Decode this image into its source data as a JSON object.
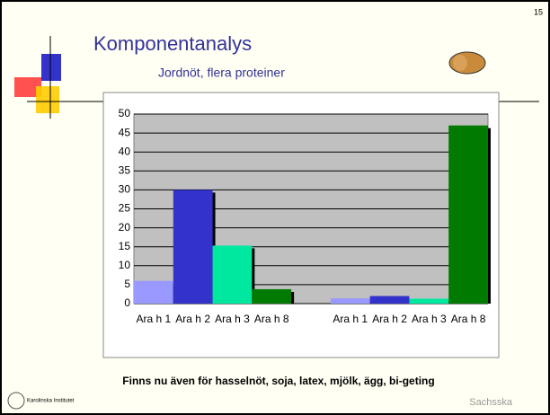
{
  "slide_number": "15",
  "chart_data": {
    "type": "bar",
    "title": "Komponentanalys",
    "subtitle": "Jordnöt, flera proteiner",
    "categories": [
      "Ara h 1",
      "Ara h 2",
      "Ara h 3",
      "Ara h 8",
      "Ara h 1",
      "Ara h 2",
      "Ara h 3",
      "Ara h 8"
    ],
    "values": [
      6,
      30,
      15.3,
      3.8,
      1.4,
      2,
      1.3,
      47
    ],
    "colors": [
      "#9999ff",
      "#3333cc",
      "#00e8a0",
      "#007a00",
      "#9999ff",
      "#3333cc",
      "#00e8a0",
      "#007a00"
    ],
    "ylim": [
      0,
      50
    ],
    "yticks": [
      0,
      5,
      10,
      15,
      20,
      25,
      30,
      35,
      40,
      45,
      50
    ],
    "grid": true
  },
  "footer": "Finns nu även för hasselnöt, soja, latex, mjölk, ägg, bi-geting",
  "logos": [
    "Karolinska Institutet",
    "Sachsska"
  ]
}
